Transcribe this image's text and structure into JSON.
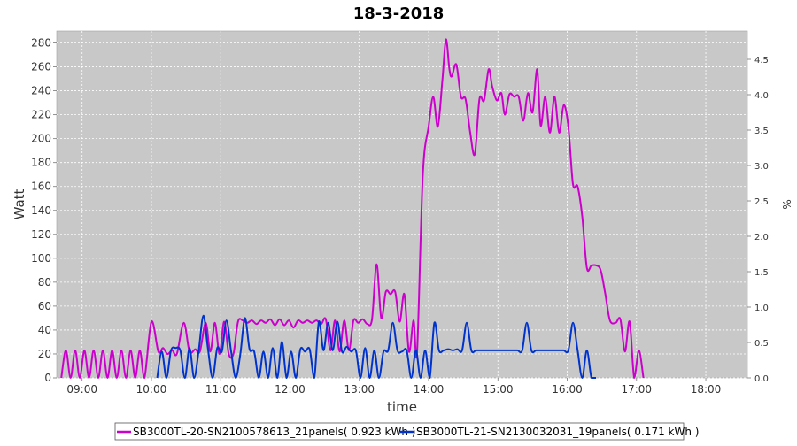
{
  "chart_data": {
    "type": "line",
    "title": "18-3-2018",
    "xlabel": "time",
    "ylabel": "Watt",
    "y2label": "%",
    "xlim": [
      "08:38",
      "18:36"
    ],
    "ylim": [
      0,
      290
    ],
    "y2lim": [
      0,
      4.9
    ],
    "x_ticks": [
      "09:00",
      "10:00",
      "11:00",
      "12:00",
      "13:00",
      "14:00",
      "15:00",
      "16:00",
      "17:00",
      "18:00"
    ],
    "y_ticks": [
      0,
      20,
      40,
      60,
      80,
      100,
      120,
      140,
      160,
      180,
      200,
      220,
      240,
      260,
      280
    ],
    "y2_ticks": [
      "0.0",
      "0.5",
      "1.0",
      "1.5",
      "2.0",
      "2.5",
      "3.0",
      "3.5",
      "4.0",
      "4.5"
    ],
    "grid": true,
    "background": "#c8c8c8",
    "legend_position": "bottom",
    "series": [
      {
        "name": "SB3000TL-20-SN2100578613_21panels( 0.923 kWh )",
        "color": "#cc00cc",
        "points": [
          [
            "08:42",
            0
          ],
          [
            "08:46",
            23
          ],
          [
            "08:50",
            0
          ],
          [
            "08:54",
            23
          ],
          [
            "08:58",
            0
          ],
          [
            "09:02",
            23
          ],
          [
            "09:06",
            0
          ],
          [
            "09:10",
            23
          ],
          [
            "09:14",
            0
          ],
          [
            "09:18",
            23
          ],
          [
            "09:22",
            0
          ],
          [
            "09:26",
            23
          ],
          [
            "09:30",
            0
          ],
          [
            "09:34",
            23
          ],
          [
            "09:38",
            0
          ],
          [
            "09:42",
            23
          ],
          [
            "09:46",
            0
          ],
          [
            "09:50",
            23
          ],
          [
            "09:54",
            0
          ],
          [
            "10:00",
            47
          ],
          [
            "10:06",
            22
          ],
          [
            "10:10",
            25
          ],
          [
            "10:14",
            20
          ],
          [
            "10:18",
            23
          ],
          [
            "10:22",
            20
          ],
          [
            "10:28",
            46
          ],
          [
            "10:33",
            22
          ],
          [
            "10:38",
            24
          ],
          [
            "10:42",
            22
          ],
          [
            "10:47",
            46
          ],
          [
            "10:51",
            22
          ],
          [
            "10:55",
            46
          ],
          [
            "10:59",
            20
          ],
          [
            "11:03",
            47
          ],
          [
            "11:07",
            20
          ],
          [
            "11:11",
            20
          ],
          [
            "11:15",
            47
          ],
          [
            "11:19",
            48
          ],
          [
            "11:23",
            46
          ],
          [
            "11:27",
            48
          ],
          [
            "11:31",
            45
          ],
          [
            "11:35",
            48
          ],
          [
            "11:39",
            46
          ],
          [
            "11:43",
            49
          ],
          [
            "11:47",
            44
          ],
          [
            "11:51",
            49
          ],
          [
            "11:55",
            44
          ],
          [
            "11:59",
            48
          ],
          [
            "12:03",
            42
          ],
          [
            "12:07",
            48
          ],
          [
            "12:11",
            46
          ],
          [
            "12:15",
            48
          ],
          [
            "12:19",
            46
          ],
          [
            "12:23",
            48
          ],
          [
            "12:27",
            45
          ],
          [
            "12:31",
            49
          ],
          [
            "12:35",
            23
          ],
          [
            "12:39",
            48
          ],
          [
            "12:43",
            22
          ],
          [
            "12:47",
            48
          ],
          [
            "12:51",
            23
          ],
          [
            "12:55",
            48
          ],
          [
            "12:59",
            46
          ],
          [
            "13:03",
            49
          ],
          [
            "13:07",
            45
          ],
          [
            "13:11",
            49
          ],
          [
            "13:15",
            95
          ],
          [
            "13:19",
            50
          ],
          [
            "13:23",
            72
          ],
          [
            "13:27",
            70
          ],
          [
            "13:31",
            72
          ],
          [
            "13:35",
            47
          ],
          [
            "13:39",
            70
          ],
          [
            "13:43",
            22
          ],
          [
            "13:47",
            48
          ],
          [
            "13:50",
            22
          ],
          [
            "13:55",
            170
          ],
          [
            "14:00",
            210
          ],
          [
            "14:04",
            235
          ],
          [
            "14:08",
            210
          ],
          [
            "14:12",
            250
          ],
          [
            "14:15",
            283
          ],
          [
            "14:18",
            258
          ],
          [
            "14:20",
            252
          ],
          [
            "14:24",
            262
          ],
          [
            "14:28",
            235
          ],
          [
            "14:32",
            233
          ],
          [
            "14:36",
            205
          ],
          [
            "14:40",
            187
          ],
          [
            "14:44",
            233
          ],
          [
            "14:48",
            232
          ],
          [
            "14:52",
            258
          ],
          [
            "14:55",
            244
          ],
          [
            "14:59",
            232
          ],
          [
            "15:03",
            238
          ],
          [
            "15:06",
            220
          ],
          [
            "15:10",
            237
          ],
          [
            "15:14",
            235
          ],
          [
            "15:18",
            235
          ],
          [
            "15:22",
            215
          ],
          [
            "15:26",
            238
          ],
          [
            "15:30",
            222
          ],
          [
            "15:34",
            258
          ],
          [
            "15:37",
            211
          ],
          [
            "15:41",
            235
          ],
          [
            "15:45",
            205
          ],
          [
            "15:49",
            235
          ],
          [
            "15:53",
            205
          ],
          [
            "15:57",
            228
          ],
          [
            "16:01",
            210
          ],
          [
            "16:05",
            162
          ],
          [
            "16:09",
            160
          ],
          [
            "16:13",
            135
          ],
          [
            "16:17",
            92
          ],
          [
            "16:21",
            94
          ],
          [
            "16:25",
            94
          ],
          [
            "16:29",
            90
          ],
          [
            "16:33",
            70
          ],
          [
            "16:37",
            48
          ],
          [
            "16:42",
            46
          ],
          [
            "16:46",
            49
          ],
          [
            "16:50",
            22
          ],
          [
            "16:54",
            47
          ],
          [
            "16:58",
            0
          ],
          [
            "17:02",
            23
          ],
          [
            "17:06",
            0
          ]
        ]
      },
      {
        "name": "SB3000TL-21-SN2130032031_19panels( 0.171 kWh )",
        "color": "#0033cc",
        "points": [
          [
            "10:05",
            0
          ],
          [
            "10:09",
            22
          ],
          [
            "10:13",
            0
          ],
          [
            "10:17",
            23
          ],
          [
            "10:21",
            25
          ],
          [
            "10:25",
            23
          ],
          [
            "10:29",
            0
          ],
          [
            "10:33",
            25
          ],
          [
            "10:37",
            0
          ],
          [
            "10:41",
            23
          ],
          [
            "10:45",
            52
          ],
          [
            "10:49",
            24
          ],
          [
            "10:53",
            0
          ],
          [
            "10:57",
            25
          ],
          [
            "11:01",
            22
          ],
          [
            "11:05",
            48
          ],
          [
            "11:09",
            22
          ],
          [
            "11:13",
            0
          ],
          [
            "11:17",
            20
          ],
          [
            "11:21",
            50
          ],
          [
            "11:25",
            24
          ],
          [
            "11:29",
            22
          ],
          [
            "11:33",
            0
          ],
          [
            "11:37",
            22
          ],
          [
            "11:41",
            0
          ],
          [
            "11:45",
            25
          ],
          [
            "11:49",
            0
          ],
          [
            "11:53",
            30
          ],
          [
            "11:57",
            0
          ],
          [
            "12:01",
            22
          ],
          [
            "12:05",
            0
          ],
          [
            "12:09",
            24
          ],
          [
            "12:13",
            22
          ],
          [
            "12:17",
            24
          ],
          [
            "12:21",
            0
          ],
          [
            "12:25",
            47
          ],
          [
            "12:29",
            23
          ],
          [
            "12:33",
            46
          ],
          [
            "12:37",
            23
          ],
          [
            "12:41",
            47
          ],
          [
            "12:45",
            22
          ],
          [
            "12:49",
            26
          ],
          [
            "12:53",
            22
          ],
          [
            "12:57",
            23
          ],
          [
            "13:01",
            0
          ],
          [
            "13:05",
            25
          ],
          [
            "13:09",
            0
          ],
          [
            "13:13",
            23
          ],
          [
            "13:17",
            0
          ],
          [
            "13:21",
            22
          ],
          [
            "13:25",
            23
          ],
          [
            "13:29",
            46
          ],
          [
            "13:33",
            23
          ],
          [
            "13:37",
            22
          ],
          [
            "13:41",
            23
          ],
          [
            "13:45",
            0
          ],
          [
            "13:49",
            23
          ],
          [
            "13:53",
            0
          ],
          [
            "13:57",
            23
          ],
          [
            "14:01",
            0
          ],
          [
            "14:05",
            46
          ],
          [
            "14:09",
            23
          ],
          [
            "14:13",
            23
          ],
          [
            "14:17",
            24
          ],
          [
            "14:21",
            23
          ],
          [
            "14:25",
            24
          ],
          [
            "14:29",
            23
          ],
          [
            "14:33",
            46
          ],
          [
            "14:37",
            23
          ],
          [
            "14:41",
            23
          ],
          [
            "14:45",
            23
          ],
          [
            "14:49",
            23
          ],
          [
            "14:53",
            23
          ],
          [
            "14:57",
            23
          ],
          [
            "15:01",
            23
          ],
          [
            "15:05",
            23
          ],
          [
            "15:09",
            23
          ],
          [
            "15:13",
            23
          ],
          [
            "15:17",
            23
          ],
          [
            "15:21",
            23
          ],
          [
            "15:25",
            46
          ],
          [
            "15:29",
            23
          ],
          [
            "15:33",
            23
          ],
          [
            "15:37",
            23
          ],
          [
            "15:41",
            23
          ],
          [
            "15:45",
            23
          ],
          [
            "15:49",
            23
          ],
          [
            "15:53",
            23
          ],
          [
            "15:57",
            23
          ],
          [
            "16:01",
            23
          ],
          [
            "16:05",
            46
          ],
          [
            "16:09",
            23
          ],
          [
            "16:13",
            0
          ],
          [
            "16:17",
            23
          ],
          [
            "16:21",
            0
          ],
          [
            "16:25",
            0
          ]
        ]
      }
    ]
  }
}
